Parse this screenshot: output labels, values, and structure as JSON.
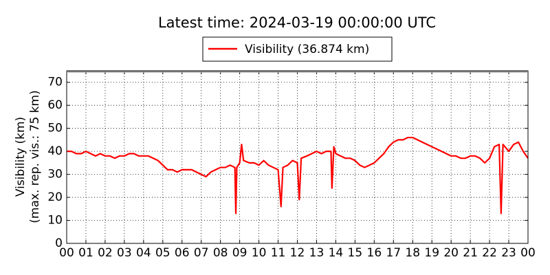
{
  "chart_data": {
    "type": "line",
    "title": "Latest time: 2024-03-19 00:00:00 UTC",
    "ylabel": [
      "Visibility (km)",
      "(max. rep. vis.: 75 km)"
    ],
    "x": [
      0,
      0.25,
      0.5,
      0.75,
      1,
      1.25,
      1.5,
      1.75,
      2,
      2.25,
      2.5,
      2.75,
      3,
      3.25,
      3.5,
      3.75,
      4,
      4.25,
      4.5,
      4.75,
      5,
      5.25,
      5.5,
      5.75,
      6,
      6.25,
      6.5,
      6.75,
      7,
      7.25,
      7.5,
      7.75,
      8,
      8.25,
      8.5,
      8.75,
      8.8,
      8.85,
      9,
      9.1,
      9.2,
      9.5,
      9.75,
      10,
      10.25,
      10.5,
      10.75,
      11,
      11.15,
      11.25,
      11.5,
      11.75,
      12,
      12.1,
      12.2,
      12.5,
      12.75,
      13,
      13.25,
      13.5,
      13.75,
      13.8,
      13.9,
      14,
      14.25,
      14.5,
      14.75,
      15,
      15.25,
      15.5,
      15.75,
      16,
      16.25,
      16.5,
      16.75,
      17,
      17.25,
      17.5,
      17.75,
      18,
      18.25,
      18.5,
      18.75,
      19,
      19.25,
      19.5,
      19.75,
      20,
      20.25,
      20.5,
      20.75,
      21,
      21.25,
      21.5,
      21.75,
      22,
      22.25,
      22.5,
      22.6,
      22.7,
      23,
      23.25,
      23.5,
      23.75,
      24
    ],
    "series": [
      {
        "name": "Visibility (36.874 km)",
        "color": "#ff0000",
        "values": [
          40,
          40,
          39,
          39,
          40,
          39,
          38,
          39,
          38,
          38,
          37,
          38,
          38,
          39,
          39,
          38,
          38,
          38,
          37,
          36,
          34,
          32,
          32,
          31,
          32,
          32,
          32,
          31,
          30,
          29,
          31,
          32,
          33,
          33,
          34,
          33,
          13,
          33,
          35,
          43,
          36,
          35,
          35,
          34,
          36,
          34,
          33,
          32,
          16,
          33,
          34,
          36,
          35,
          19,
          37,
          38,
          39,
          40,
          39,
          40,
          40,
          24,
          42,
          39,
          38,
          37,
          37,
          36,
          34,
          33,
          34,
          35,
          37,
          39,
          42,
          44,
          45,
          45,
          46,
          46,
          45,
          44,
          43,
          42,
          41,
          40,
          39,
          38,
          38,
          37,
          37,
          38,
          38,
          37,
          35,
          37,
          42,
          43,
          13,
          43,
          40,
          43,
          44,
          40,
          37
        ]
      }
    ],
    "xlim": [
      0,
      24
    ],
    "xticks": [
      {
        "value": 0,
        "label": "00"
      },
      {
        "value": 1,
        "label": "01"
      },
      {
        "value": 2,
        "label": "02"
      },
      {
        "value": 3,
        "label": "03"
      },
      {
        "value": 4,
        "label": "04"
      },
      {
        "value": 5,
        "label": "05"
      },
      {
        "value": 6,
        "label": "06"
      },
      {
        "value": 7,
        "label": "07"
      },
      {
        "value": 8,
        "label": "08"
      },
      {
        "value": 9,
        "label": "09"
      },
      {
        "value": 10,
        "label": "10"
      },
      {
        "value": 11,
        "label": "11"
      },
      {
        "value": 12,
        "label": "12"
      },
      {
        "value": 13,
        "label": "13"
      },
      {
        "value": 14,
        "label": "14"
      },
      {
        "value": 15,
        "label": "15"
      },
      {
        "value": 16,
        "label": "16"
      },
      {
        "value": 17,
        "label": "17"
      },
      {
        "value": 18,
        "label": "18"
      },
      {
        "value": 19,
        "label": "19"
      },
      {
        "value": 20,
        "label": "20"
      },
      {
        "value": 21,
        "label": "21"
      },
      {
        "value": 22,
        "label": "22"
      },
      {
        "value": 23,
        "label": "23"
      },
      {
        "value": 24,
        "label": "00"
      }
    ],
    "ylim": [
      0,
      75
    ],
    "yticks": [
      0,
      10,
      20,
      30,
      40,
      50,
      60,
      70
    ],
    "grid": true
  }
}
